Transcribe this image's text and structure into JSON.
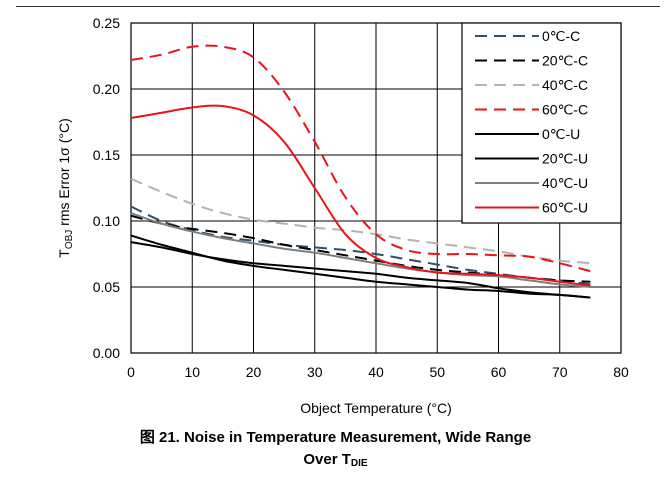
{
  "chart_data": {
    "type": "line",
    "xlabel": "Object Temperature (°C)",
    "ylabel": {
      "main": "T",
      "sub": "OBJ",
      "rest": " rms Error 1σ (°C)"
    },
    "xlim": [
      0,
      80
    ],
    "ylim": [
      0,
      0.25
    ],
    "x_ticks": [
      "0",
      "10",
      "20",
      "30",
      "40",
      "50",
      "60",
      "70",
      "80"
    ],
    "y_ticks": [
      "0.00",
      "0.05",
      "0.10",
      "0.15",
      "0.20",
      "0.25"
    ],
    "grid": true,
    "legend_position": "top-right",
    "series": [
      {
        "name": "0℃-C",
        "color": "#2e5068",
        "dash": true,
        "x": [
          0,
          5,
          10,
          15,
          20,
          25,
          30,
          35,
          40,
          45,
          50,
          55,
          60,
          65,
          70,
          75
        ],
        "y": [
          0.111,
          0.1,
          0.093,
          0.088,
          0.085,
          0.082,
          0.08,
          0.078,
          0.075,
          0.071,
          0.067,
          0.063,
          0.06,
          0.057,
          0.055,
          0.052
        ]
      },
      {
        "name": "20℃-C",
        "color": "#000000",
        "dash": true,
        "x": [
          0,
          5,
          10,
          15,
          20,
          25,
          30,
          35,
          40,
          45,
          50,
          55,
          60,
          65,
          70,
          75
        ],
        "y": [
          0.104,
          0.098,
          0.094,
          0.091,
          0.087,
          0.082,
          0.078,
          0.074,
          0.07,
          0.066,
          0.063,
          0.061,
          0.059,
          0.057,
          0.055,
          0.054
        ]
      },
      {
        "name": "40℃-C",
        "color": "#b3b3b3",
        "dash": true,
        "x": [
          0,
          5,
          10,
          15,
          20,
          25,
          30,
          35,
          40,
          45,
          50,
          55,
          60,
          65,
          70,
          75
        ],
        "y": [
          0.132,
          0.122,
          0.113,
          0.106,
          0.101,
          0.098,
          0.095,
          0.093,
          0.09,
          0.086,
          0.083,
          0.08,
          0.077,
          0.073,
          0.07,
          0.068
        ]
      },
      {
        "name": "60℃-C",
        "color": "#e8141b",
        "dash": true,
        "x": [
          0,
          5,
          10,
          15,
          20,
          25,
          30,
          35,
          40,
          45,
          50,
          55,
          60,
          65,
          70,
          75
        ],
        "y": [
          0.222,
          0.226,
          0.232,
          0.232,
          0.224,
          0.198,
          0.16,
          0.118,
          0.09,
          0.078,
          0.075,
          0.075,
          0.074,
          0.073,
          0.068,
          0.062
        ]
      },
      {
        "name": "0℃-U",
        "color": "#000000",
        "dash": false,
        "x": [
          0,
          5,
          10,
          15,
          20,
          25,
          30,
          35,
          40,
          45,
          50,
          55,
          60,
          65,
          70,
          75
        ],
        "y": [
          0.084,
          0.08,
          0.075,
          0.071,
          0.068,
          0.066,
          0.064,
          0.062,
          0.06,
          0.057,
          0.055,
          0.053,
          0.049,
          0.046,
          0.044,
          0.042
        ]
      },
      {
        "name": "20℃-U",
        "color": "#000000",
        "dash": false,
        "x": [
          0,
          5,
          10,
          15,
          20,
          25,
          30,
          35,
          40,
          45,
          50,
          55,
          60,
          65,
          70,
          75
        ],
        "y": [
          0.089,
          0.082,
          0.076,
          0.07,
          0.066,
          0.063,
          0.06,
          0.057,
          0.054,
          0.052,
          0.05,
          0.048,
          0.047,
          0.045,
          0.044,
          0.042
        ]
      },
      {
        "name": "40℃-U",
        "color": "#7f7f7f",
        "dash": false,
        "x": [
          0,
          5,
          10,
          15,
          20,
          25,
          30,
          35,
          40,
          45,
          50,
          55,
          60,
          65,
          70,
          75
        ],
        "y": [
          0.106,
          0.098,
          0.092,
          0.087,
          0.083,
          0.079,
          0.076,
          0.072,
          0.068,
          0.064,
          0.061,
          0.059,
          0.058,
          0.055,
          0.052,
          0.05
        ]
      },
      {
        "name": "60℃-U",
        "color": "#e8141b",
        "dash": false,
        "x": [
          0,
          5,
          10,
          15,
          20,
          25,
          30,
          35,
          40,
          45,
          50,
          55,
          60,
          65,
          70,
          75
        ],
        "y": [
          0.178,
          0.182,
          0.186,
          0.187,
          0.18,
          0.16,
          0.125,
          0.09,
          0.072,
          0.065,
          0.061,
          0.06,
          0.059,
          0.057,
          0.054,
          0.051
        ]
      }
    ]
  },
  "caption": {
    "line1": "图 21. Noise in Temperature Measurement, Wide Range",
    "line2_prefix": "Over T",
    "line2_sub": "DIE"
  }
}
